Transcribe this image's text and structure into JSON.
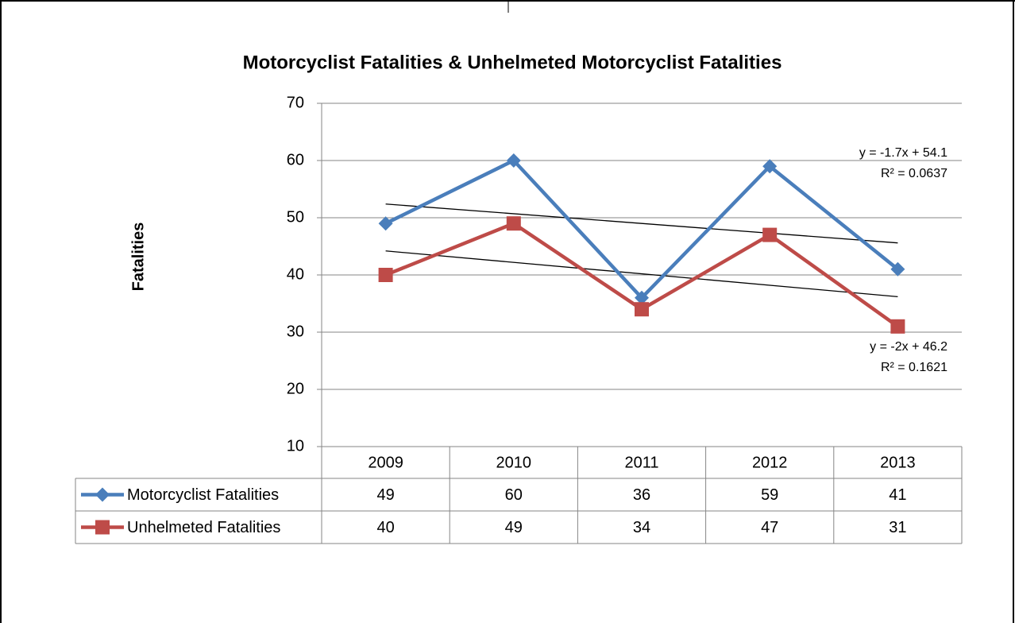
{
  "chart_data": {
    "type": "line",
    "title": "Motorcyclist Fatalities & Unhelmeted Motorcyclist Fatalities",
    "y_label": "Fatalities",
    "categories": [
      "2009",
      "2010",
      "2011",
      "2012",
      "2013"
    ],
    "series": [
      {
        "name": "Motorcyclist Fatalities",
        "color": "#4a7ebb",
        "marker": "diamond",
        "values": [
          49,
          60,
          36,
          59,
          41
        ]
      },
      {
        "name": "Unhelmeted Fatalities",
        "color": "#be4b48",
        "marker": "square",
        "values": [
          40,
          49,
          34,
          47,
          31
        ]
      }
    ],
    "trendline_labels": [
      [
        "y = -1.7x + 54.1",
        "R² = 0.0637"
      ],
      [
        "y = -2x + 46.2",
        "R² = 0.1621"
      ]
    ],
    "ylim": [
      10,
      70
    ],
    "yticks": [
      10,
      20,
      30,
      40,
      50,
      60,
      70
    ],
    "grid": true,
    "data_table": true
  }
}
